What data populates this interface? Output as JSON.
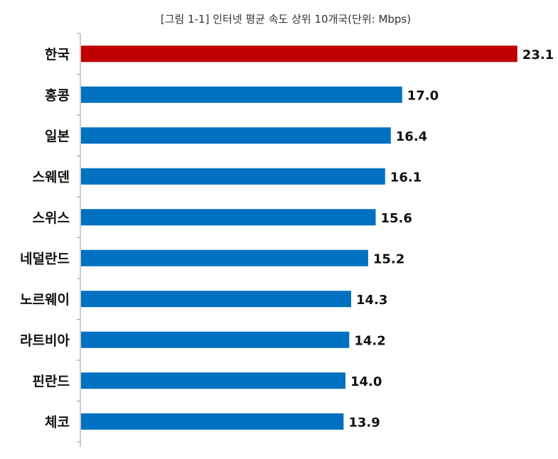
{
  "chart_data": {
    "type": "bar",
    "orientation": "horizontal",
    "title": "[그림 1-1] 인터넷 평균 속도 상위 10개국(단위: Mbps)",
    "categories": [
      "한국",
      "홍콩",
      "일본",
      "스웨덴",
      "스위스",
      "네덜란드",
      "노르웨이",
      "라트비아",
      "핀란드",
      "체코"
    ],
    "values": [
      23.1,
      17.0,
      16.4,
      16.1,
      15.6,
      15.2,
      14.3,
      14.2,
      14.0,
      13.9
    ],
    "value_labels": [
      "23.1",
      "17.0",
      "16.4",
      "16.1",
      "15.6",
      "15.2",
      "14.3",
      "14.2",
      "14.0",
      "13.9"
    ],
    "xlim": [
      0,
      24.5
    ],
    "highlight_index": 0,
    "colors": {
      "highlight": "#c00000",
      "default": "#0070c0"
    },
    "grid": false,
    "legend": "none"
  }
}
